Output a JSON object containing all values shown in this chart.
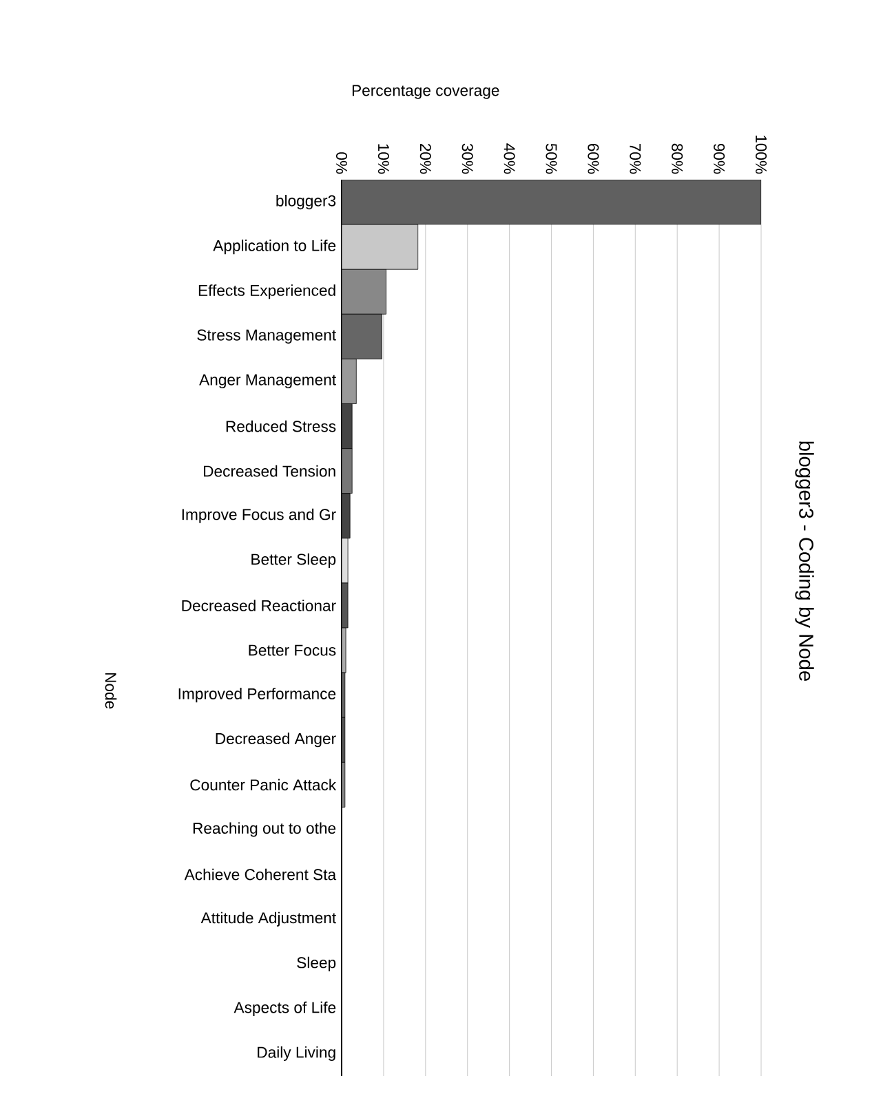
{
  "chart_data": {
    "type": "bar",
    "orientation": "horizontal",
    "title": "blogger3 - Coding by Node",
    "xlabel": "Percentage coverage",
    "ylabel": "Node",
    "categories": [
      "blogger3",
      "Application to Life",
      "Effects Experienced",
      "Stress Management",
      "Anger Management",
      "Reduced Stress",
      "Decreased Tension",
      "Improve Focus and Gr",
      "Better Sleep",
      "Decreased Reactionar",
      "Better Focus",
      "Improved Performance",
      "Decreased Anger",
      "Counter Panic Attack",
      "Reaching out to othe",
      "Achieve Coherent Sta",
      "Attitude Adjustment",
      "Sleep",
      "Aspects of Life",
      "Daily Living"
    ],
    "values": [
      100,
      18.2,
      10.6,
      9.6,
      3.5,
      2.5,
      2.5,
      2,
      1.5,
      1.5,
      1,
      0.8,
      0.8,
      0.8,
      null,
      null,
      null,
      null,
      null,
      null
    ],
    "colors": [
      "#606060",
      "#c8c8c8",
      "#888888",
      "#666666",
      "#999999",
      "#444444",
      "#777777",
      "#444444",
      "#dddddd",
      "#555555",
      "#aaaaaa",
      "#666666",
      "#555555",
      "#888888",
      "#333333",
      "#333333",
      "#333333",
      "#333333",
      "#333333",
      "#333333"
    ],
    "xlim": [
      0,
      100
    ],
    "xticks": [
      {
        "value": 0,
        "label": "0%"
      },
      {
        "value": 10,
        "label": "10%"
      },
      {
        "value": 20,
        "label": "20%"
      },
      {
        "value": 30,
        "label": "30%"
      },
      {
        "value": 40,
        "label": "40%"
      },
      {
        "value": 50,
        "label": "50%"
      },
      {
        "value": 60,
        "label": "60%"
      },
      {
        "value": 70,
        "label": "70%"
      },
      {
        "value": 80,
        "label": "80%"
      },
      {
        "value": 90,
        "label": "90%"
      },
      {
        "value": 100,
        "label": "100%"
      }
    ],
    "grid": "x"
  }
}
